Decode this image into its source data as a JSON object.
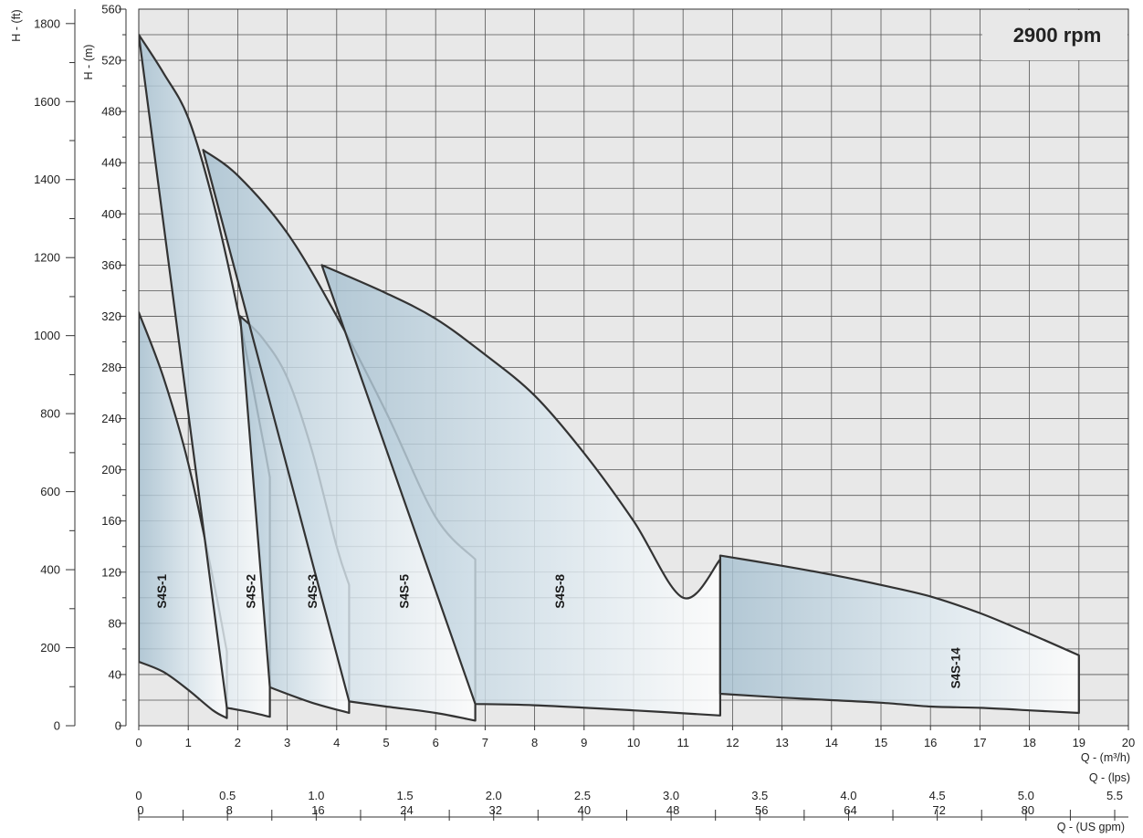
{
  "chart_data": {
    "type": "area",
    "title": "2900 rpm",
    "x_axis": {
      "label": "Q - (m³/h)",
      "range": [
        0,
        20
      ],
      "ticks": [
        "0",
        "1",
        "2",
        "3",
        "4",
        "5",
        "6",
        "7",
        "8",
        "9",
        "10",
        "11",
        "12",
        "13",
        "14",
        "15",
        "16",
        "17",
        "18",
        "19",
        "20"
      ]
    },
    "y_axis": {
      "label": "H - (m)",
      "range": [
        0,
        560
      ],
      "ticks": [
        "0",
        "40",
        "80",
        "120",
        "160",
        "200",
        "240",
        "280",
        "320",
        "360",
        "400",
        "440",
        "480",
        "520",
        "560"
      ]
    },
    "y2_axis": {
      "label": "H - (ft)",
      "range": [
        0,
        1837
      ],
      "ticks": [
        "0",
        "200",
        "400",
        "600",
        "800",
        "1000",
        "1200",
        "1400",
        "1600",
        "1800"
      ]
    },
    "x2_axis": {
      "label": "Q - (lps)",
      "range": [
        0,
        5.5
      ],
      "ticks": [
        "0",
        "0.5",
        "1.0",
        "1.5",
        "2.0",
        "2.5",
        "3.0",
        "3.5",
        "4.0",
        "4.5",
        "5.0",
        "5.5"
      ]
    },
    "x3_axis": {
      "label": "Q - (US gpm)",
      "range": [
        0,
        88
      ],
      "ticks": [
        "0",
        "8",
        "16",
        "24",
        "32",
        "40",
        "48",
        "56",
        "64",
        "72",
        "80"
      ]
    },
    "grid": true,
    "series": [
      {
        "name": "S4S-1",
        "label_pos": [
          0.55,
          105
        ],
        "upper": [
          [
            0,
            323
          ],
          [
            0.5,
            272
          ],
          [
            1,
            205
          ],
          [
            1.5,
            115
          ],
          [
            1.78,
            58
          ]
        ],
        "lower": [
          [
            0,
            50
          ],
          [
            0.5,
            42
          ],
          [
            1,
            28
          ],
          [
            1.5,
            12
          ],
          [
            1.78,
            6
          ]
        ]
      },
      {
        "name": "S4S-2",
        "label_pos": [
          2.35,
          105
        ],
        "upper": [
          [
            0,
            540
          ],
          [
            0.5,
            510
          ],
          [
            1,
            475
          ],
          [
            1.5,
            410
          ],
          [
            2,
            325
          ],
          [
            2.5,
            225
          ],
          [
            2.65,
            194
          ]
        ],
        "lower": [
          [
            1.78,
            14
          ],
          [
            2.2,
            11
          ],
          [
            2.65,
            7
          ]
        ]
      },
      {
        "name": "S4S-3",
        "label_pos": [
          3.6,
          105
        ],
        "upper": [
          [
            2.05,
            320
          ],
          [
            2.5,
            303
          ],
          [
            3,
            272
          ],
          [
            3.5,
            215
          ],
          [
            4,
            140
          ],
          [
            4.25,
            110
          ]
        ],
        "lower": [
          [
            2.65,
            30
          ],
          [
            3.5,
            18
          ],
          [
            4.25,
            10
          ]
        ]
      },
      {
        "name": "S4S-5",
        "label_pos": [
          5.45,
          105
        ],
        "upper": [
          [
            1.3,
            450
          ],
          [
            2,
            430
          ],
          [
            3,
            385
          ],
          [
            4,
            320
          ],
          [
            5,
            245
          ],
          [
            6,
            163
          ],
          [
            6.8,
            130
          ]
        ],
        "lower": [
          [
            4.25,
            19
          ],
          [
            5,
            15
          ],
          [
            6,
            10
          ],
          [
            6.8,
            4
          ]
        ]
      },
      {
        "name": "S4S-8",
        "label_pos": [
          8.6,
          105
        ],
        "upper": [
          [
            3.7,
            360
          ],
          [
            5,
            338
          ],
          [
            6,
            318
          ],
          [
            7,
            290
          ],
          [
            8,
            258
          ],
          [
            9,
            213
          ],
          [
            10,
            160
          ],
          [
            11,
            100
          ],
          [
            11.75,
            130
          ]
        ],
        "lower": [
          [
            6.8,
            17
          ],
          [
            8,
            16
          ],
          [
            10,
            12
          ],
          [
            11.75,
            8
          ]
        ]
      },
      {
        "name": "S4S-14",
        "label_pos": [
          16.6,
          45
        ],
        "upper": [
          [
            11.75,
            133
          ],
          [
            13,
            125
          ],
          [
            14,
            118
          ],
          [
            15,
            110
          ],
          [
            16,
            101
          ],
          [
            17,
            88
          ],
          [
            18,
            72
          ],
          [
            19,
            55
          ]
        ],
        "lower": [
          [
            11.75,
            25
          ],
          [
            13,
            22
          ],
          [
            14,
            20
          ],
          [
            15,
            18
          ],
          [
            16,
            15
          ],
          [
            17,
            14
          ],
          [
            18,
            12
          ],
          [
            19,
            10
          ]
        ]
      }
    ]
  }
}
